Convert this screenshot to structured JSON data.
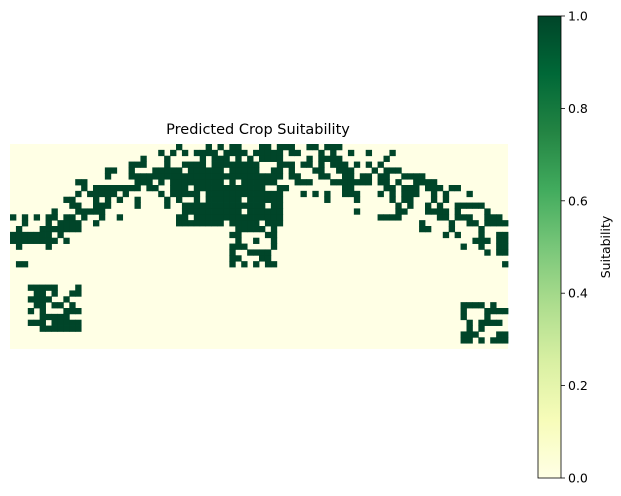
{
  "chart_data": {
    "type": "heatmap",
    "title": "Predicted Crop Suitability",
    "colormap": "YlGn",
    "colormap_stops": [
      "#ffffe5",
      "#f7fcb9",
      "#d9f0a3",
      "#addd8e",
      "#78c679",
      "#41ab5d",
      "#238443",
      "#006837",
      "#004529"
    ],
    "grid_columns": 84,
    "grid_rows": 35,
    "axes_visible": false,
    "values_description": "binary mask: 1 = suitable (dark green), 0 = not suitable (pale yellow)",
    "colorbar": {
      "label": "Suitability",
      "range": [
        0.0,
        1.0
      ],
      "ticks": [
        "0.0",
        "0.2",
        "0.4",
        "0.6",
        "0.8",
        "1.0"
      ]
    }
  }
}
